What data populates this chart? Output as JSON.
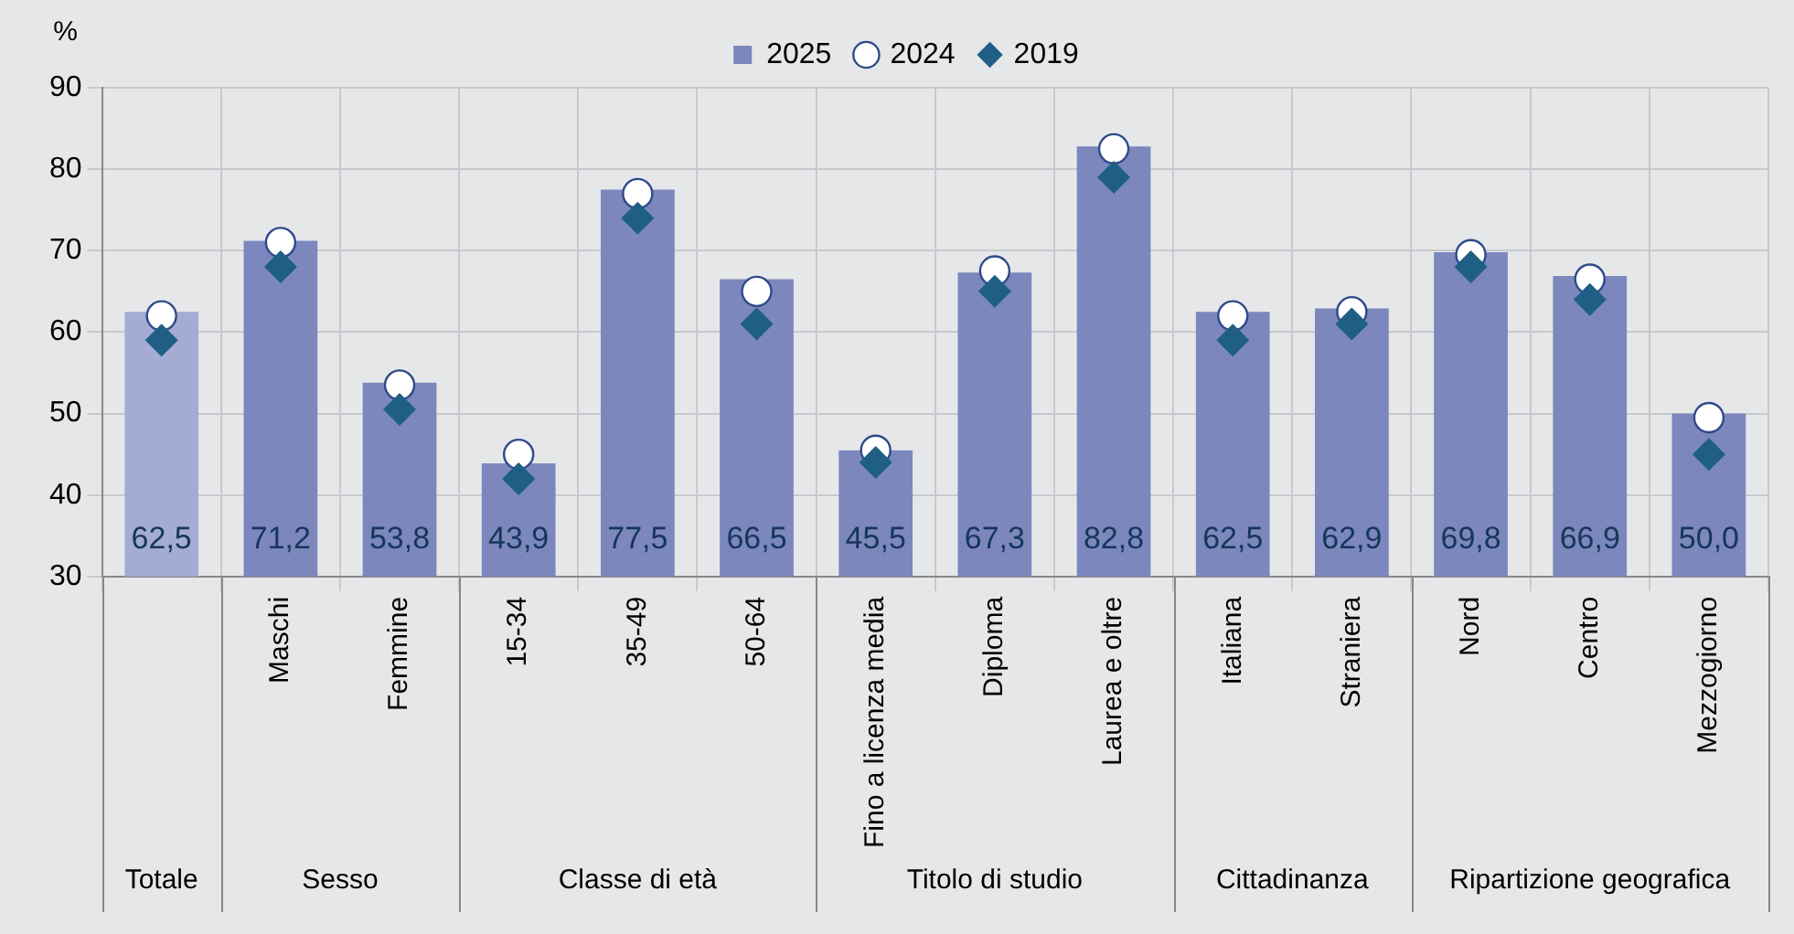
{
  "chart_data": {
    "type": "bar",
    "ylabel": "%",
    "categories": [
      null,
      "Maschi",
      "Femmine",
      "15-34",
      "35-49",
      "50-64",
      "Fino a licenza media",
      "Diploma",
      "Laurea e oltre",
      "Italiana",
      "Straniera",
      "Nord",
      "Centro",
      "Mezzogiorno"
    ],
    "series": [
      {
        "name": "2025",
        "color": "#7b87bd",
        "colors": [
          "#a4acd4",
          "#7b87bd",
          "#7b87bd",
          "#7b87bd",
          "#7b87bd",
          "#7b87bd",
          "#7b87bd",
          "#7b87bd",
          "#7b87bd",
          "#7b87bd",
          "#7b87bd",
          "#7b87bd",
          "#7b87bd",
          "#7b87bd"
        ],
        "values": [
          62.5,
          71.2,
          53.8,
          43.9,
          77.5,
          66.5,
          45.5,
          67.3,
          82.8,
          62.5,
          62.9,
          69.8,
          66.9,
          50.0
        ],
        "value_labels": [
          "62,5",
          "71,2",
          "53,8",
          "43,9",
          "77,5",
          "66,5",
          "45,5",
          "67,3",
          "82,8",
          "62,5",
          "62,9",
          "69,8",
          "66,9",
          "50,0"
        ]
      },
      {
        "name": "2024",
        "type": "scatter",
        "marker": "circle",
        "color": "#ffffff",
        "values": [
          62,
          71,
          53.5,
          45,
          77,
          65,
          45.5,
          67.5,
          82.5,
          62,
          62.5,
          69.5,
          66.5,
          49.5
        ]
      },
      {
        "name": "2019",
        "type": "scatter",
        "marker": "diamond",
        "color": "#1f5f85",
        "values": [
          59,
          68,
          50.5,
          42,
          74,
          61,
          44,
          65,
          79,
          59,
          61,
          68,
          64,
          45
        ]
      }
    ],
    "annotations": [
      "Totale",
      "Sesso",
      "Classe di età",
      "Titolo di studio",
      "Cittadinanza",
      "Ripartizione geografica"
    ],
    "ylim": [
      30,
      90
    ],
    "yticks": [
      30,
      40,
      50,
      60,
      70,
      80,
      90
    ],
    "grid": true,
    "legend": "top"
  }
}
